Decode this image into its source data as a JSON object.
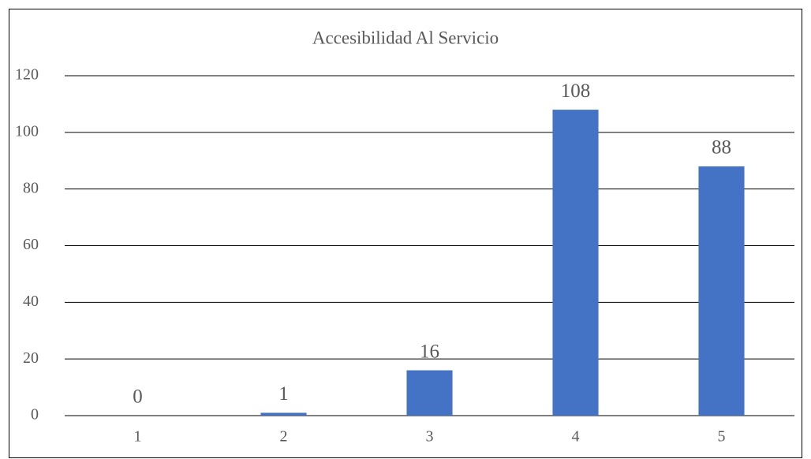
{
  "chart_data": {
    "type": "bar",
    "title": "Accesibilidad Al Servicio",
    "categories": [
      "1",
      "2",
      "3",
      "4",
      "5"
    ],
    "values": [
      0,
      1,
      16,
      108,
      88
    ],
    "color": "#4472c4",
    "ylim": [
      0,
      120
    ],
    "yticks": [
      0,
      20,
      40,
      60,
      80,
      100,
      120
    ],
    "grid": true,
    "data_labels": true
  }
}
